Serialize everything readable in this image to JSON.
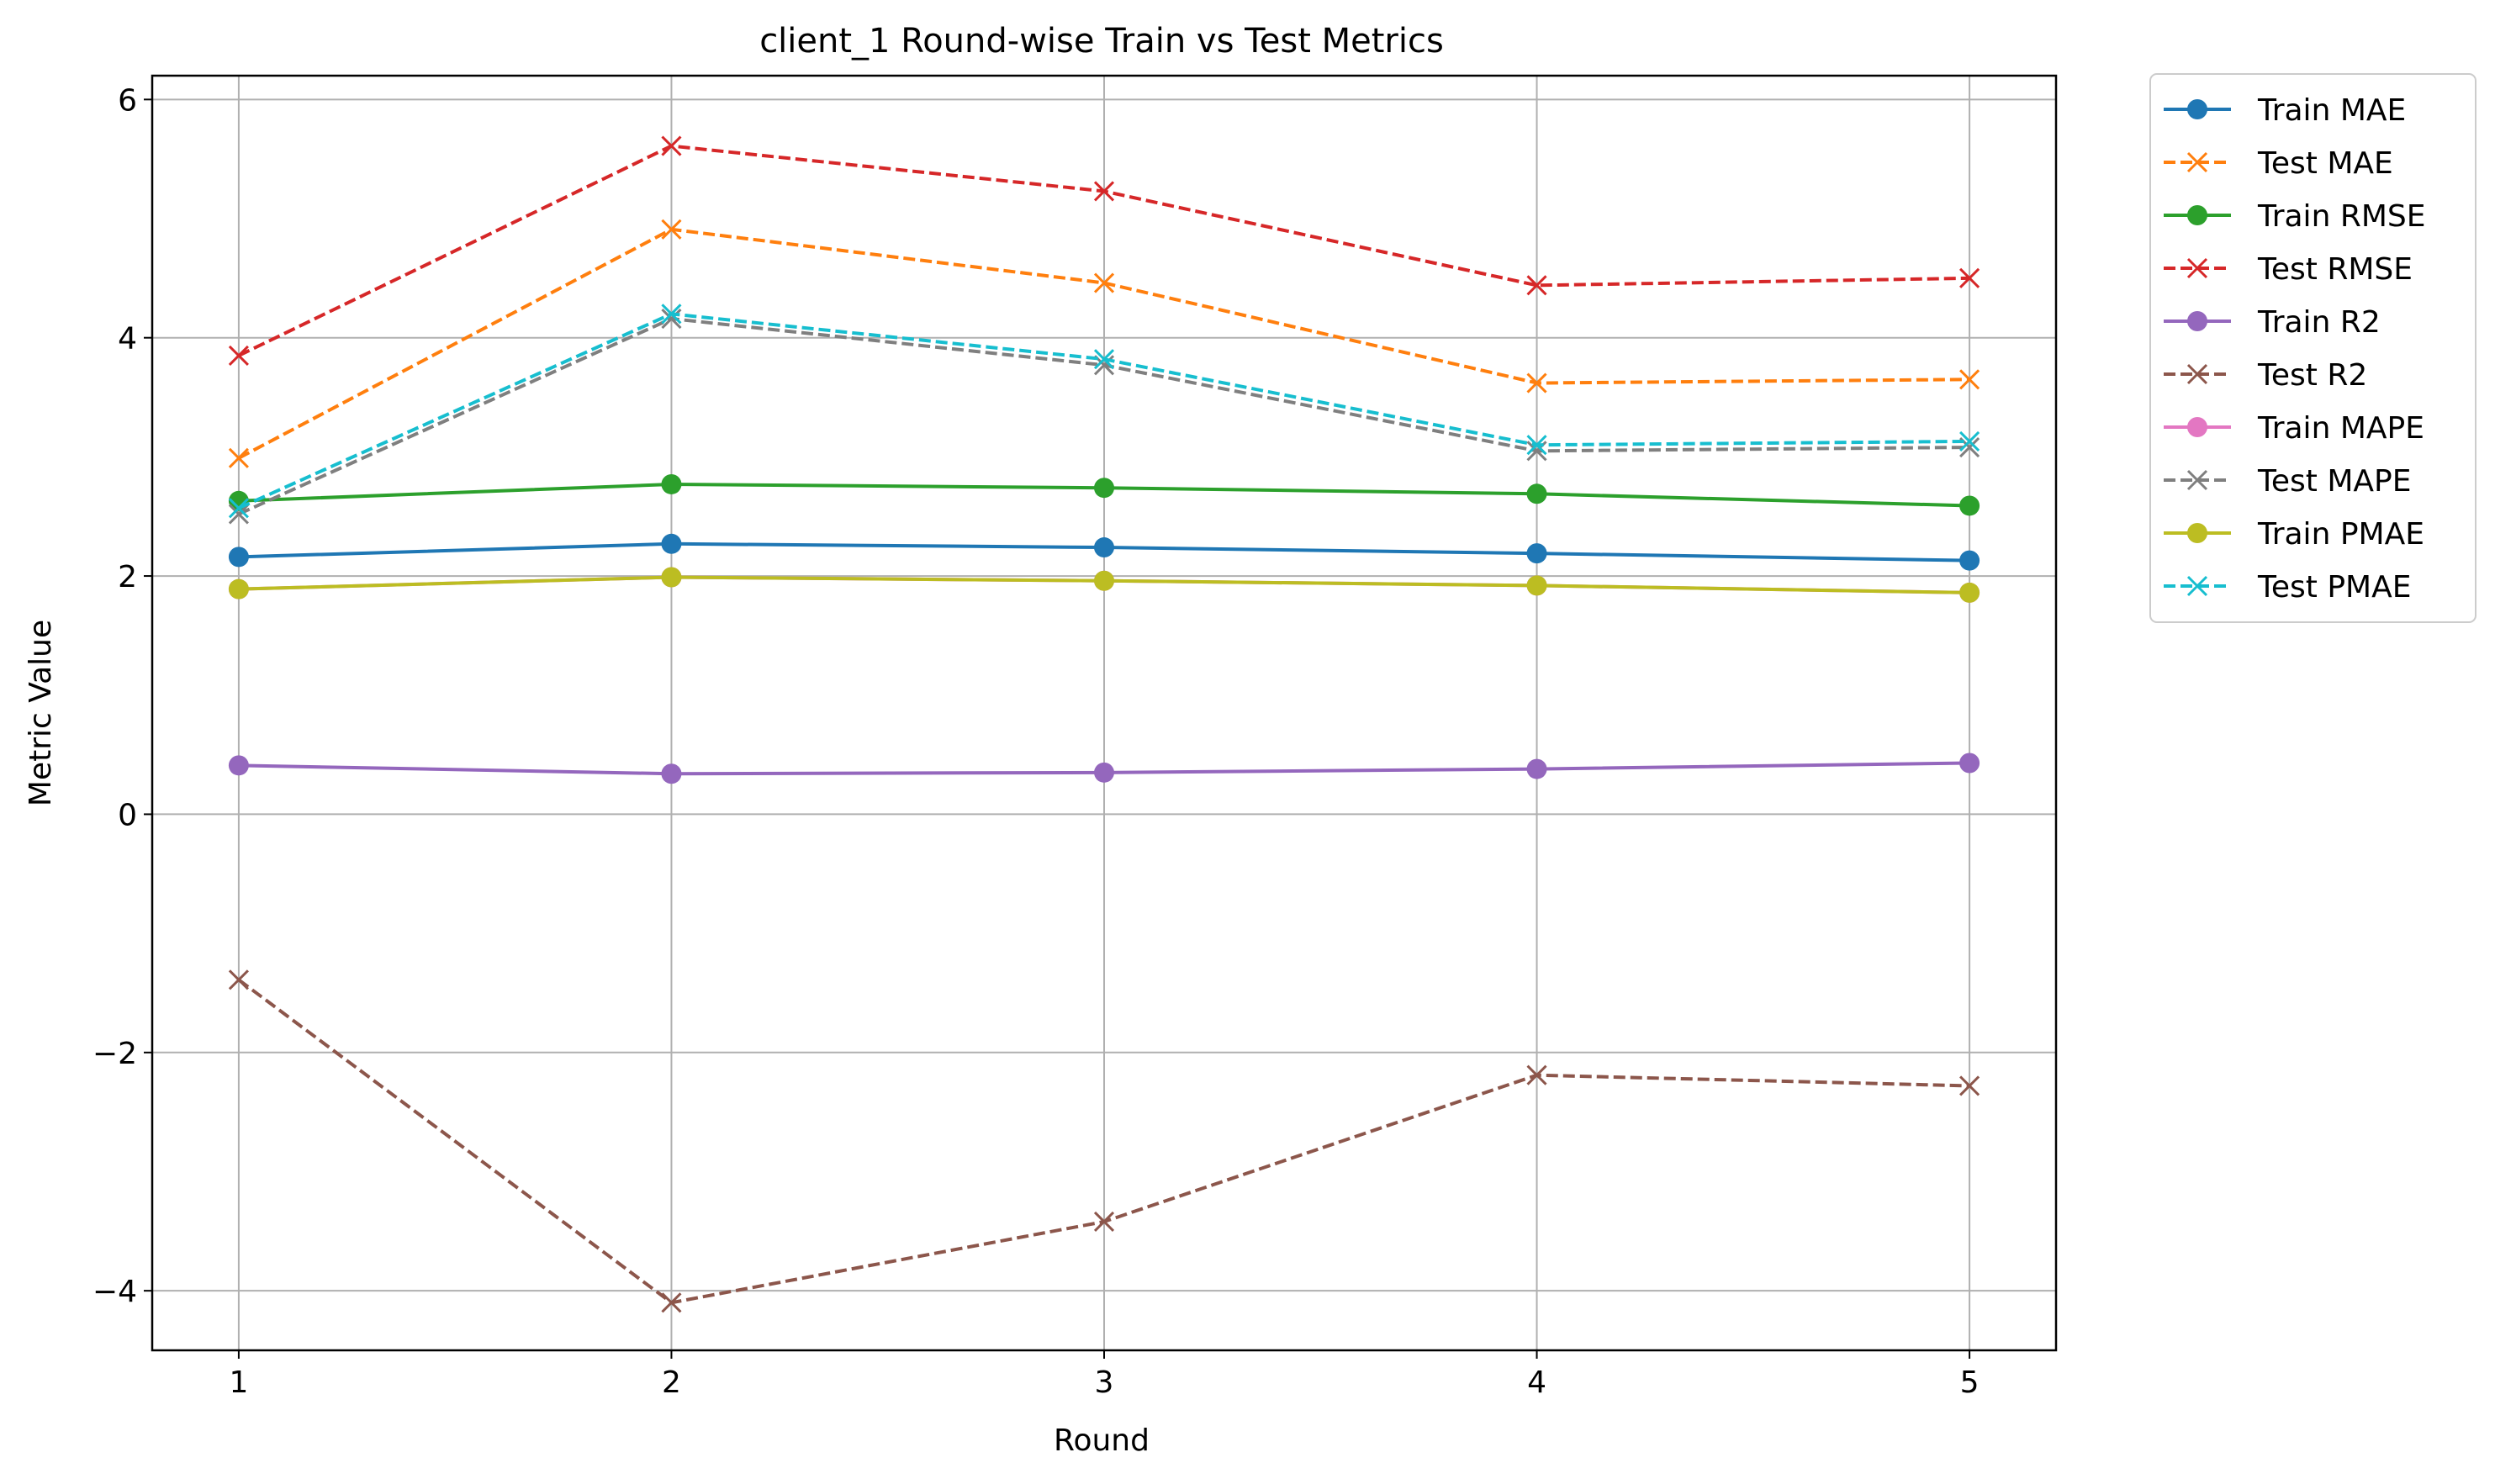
{
  "chart_data": {
    "type": "line",
    "title": "client_1 Round-wise Train vs Test Metrics",
    "xlabel": "Round",
    "ylabel": "Metric Value",
    "x": [
      1,
      2,
      3,
      4,
      5
    ],
    "xlim": [
      0.8,
      5.2
    ],
    "ylim": [
      -4.5,
      6.2
    ],
    "xticks": [
      1,
      2,
      3,
      4,
      5
    ],
    "yticks": [
      -4,
      -2,
      0,
      2,
      4,
      6
    ],
    "ytick_labels": [
      "−4",
      "−2",
      "0",
      "2",
      "4",
      "6"
    ],
    "grid": true,
    "legend_position": "outside-top-right",
    "series": [
      {
        "name": "Train MAE",
        "color": "#1f77b4",
        "style": "solid",
        "marker": "circle",
        "values": [
          2.16,
          2.27,
          2.24,
          2.19,
          2.13
        ]
      },
      {
        "name": "Test MAE",
        "color": "#ff7f0e",
        "style": "dashed",
        "marker": "x",
        "values": [
          2.99,
          4.91,
          4.46,
          3.62,
          3.65
        ]
      },
      {
        "name": "Train RMSE",
        "color": "#2ca02c",
        "style": "solid",
        "marker": "circle",
        "values": [
          2.63,
          2.77,
          2.74,
          2.69,
          2.59
        ]
      },
      {
        "name": "Test RMSE",
        "color": "#d62728",
        "style": "dashed",
        "marker": "x",
        "values": [
          3.85,
          5.61,
          5.23,
          4.44,
          4.5
        ]
      },
      {
        "name": "Train R2",
        "color": "#9467bd",
        "style": "solid",
        "marker": "circle",
        "values": [
          0.41,
          0.34,
          0.35,
          0.38,
          0.43
        ]
      },
      {
        "name": "Test R2",
        "color": "#8c564b",
        "style": "dashed",
        "marker": "x",
        "values": [
          -1.39,
          -4.1,
          -3.42,
          -2.19,
          -2.28
        ]
      },
      {
        "name": "Train MAPE",
        "color": "#e377c2",
        "style": "solid",
        "marker": "circle",
        "values": [
          1.89,
          1.99,
          1.96,
          1.92,
          1.86
        ]
      },
      {
        "name": "Test MAPE",
        "color": "#7f7f7f",
        "style": "dashed",
        "marker": "x",
        "values": [
          2.52,
          4.16,
          3.77,
          3.05,
          3.08
        ]
      },
      {
        "name": "Train PMAE",
        "color": "#bcbd22",
        "style": "solid",
        "marker": "circle",
        "values": [
          1.89,
          1.99,
          1.96,
          1.92,
          1.86
        ]
      },
      {
        "name": "Test PMAE",
        "color": "#17becf",
        "style": "dashed",
        "marker": "x",
        "values": [
          2.57,
          4.2,
          3.82,
          3.1,
          3.13
        ]
      }
    ]
  }
}
